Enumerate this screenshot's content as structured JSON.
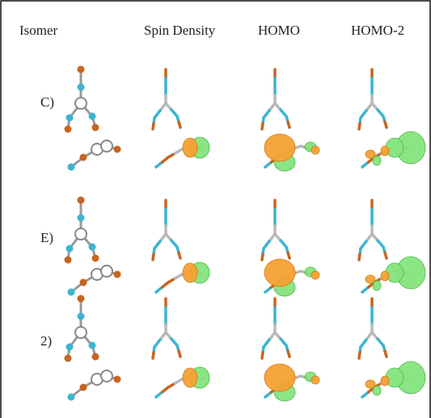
{
  "header": {
    "columns": [
      "Isomer",
      "Spin Density",
      "HOMO",
      "HOMO-2"
    ]
  },
  "rows": [
    {
      "label": "C)"
    },
    {
      "label": "E)"
    },
    {
      "label": "2)"
    }
  ]
}
